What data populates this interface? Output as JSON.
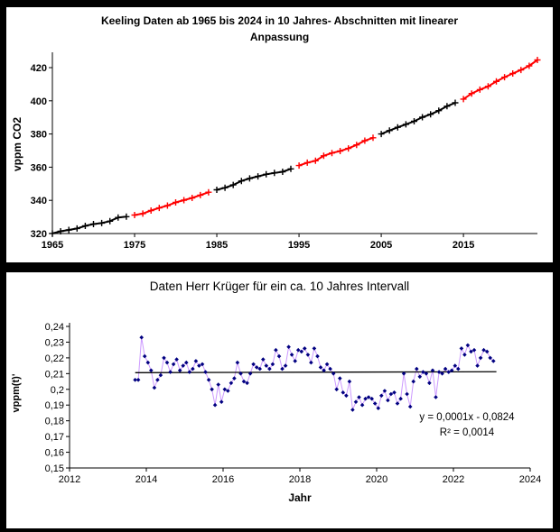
{
  "colors": {
    "frame": "#000000",
    "panel": "#ffffff",
    "axis": "#000000",
    "segment_black": "#000000",
    "segment_red": "#ff0000",
    "kruger_marker_navy": "#000080",
    "kruger_line_lavender": "#cc99ff",
    "trendline_black": "#000000"
  },
  "chart_data": [
    {
      "type": "line",
      "title": "Keeling Daten ab 1965 bis 2024 in 10 Jahres- Abschnitten mit linearer Anpassung",
      "title_lines": [
        "Keeling Daten ab 1965 bis 2024 in 10 Jahres- Abschnitten mit linearer",
        "Anpassung"
      ],
      "xlabel": "",
      "ylabel": "vppm CO2",
      "xlim": [
        1965,
        2024
      ],
      "ylim": [
        320,
        430
      ],
      "xticks": [
        1965,
        1975,
        1985,
        1995,
        2005,
        2015
      ],
      "yticks": [
        320,
        340,
        360,
        380,
        400,
        420
      ],
      "grid": false,
      "legend": "none",
      "marker": "plus",
      "note": "annual mean CO2, 10-year sections alternating black/red with linear fit",
      "segments": [
        {
          "color": "#000000",
          "start_year": 1965,
          "values": [
            320.04,
            321.37,
            322.18,
            323.05,
            324.62,
            325.68,
            326.32,
            327.46,
            329.68,
            330.19
          ]
        },
        {
          "color": "#ff0000",
          "start_year": 1975,
          "values": [
            331.13,
            332.03,
            333.84,
            335.41,
            336.84,
            338.76,
            340.12,
            341.48,
            343.15,
            344.87
          ]
        },
        {
          "color": "#000000",
          "start_year": 1985,
          "values": [
            346.35,
            347.61,
            349.31,
            351.69,
            353.2,
            354.45,
            355.7,
            356.54,
            357.21,
            358.96
          ]
        },
        {
          "color": "#ff0000",
          "start_year": 1995,
          "values": [
            360.97,
            362.74,
            363.88,
            366.84,
            368.54,
            369.71,
            371.32,
            373.45,
            375.98,
            377.7
          ]
        },
        {
          "color": "#000000",
          "start_year": 2005,
          "values": [
            379.98,
            382.09,
            384.02,
            385.83,
            387.64,
            390.1,
            391.85,
            394.06,
            396.74,
            398.81
          ]
        },
        {
          "color": "#ff0000",
          "start_year": 2015,
          "values": [
            401.01,
            404.41,
            406.76,
            408.72,
            411.66,
            414.24,
            416.45,
            418.56,
            421.08,
            424.61
          ]
        }
      ]
    },
    {
      "type": "scatter",
      "title": "Daten Herr Krüger für ein ca. 10 Jahres Intervall",
      "xlabel": "Jahr",
      "ylabel": "vppm(t)'",
      "xlim": [
        2012,
        2024
      ],
      "ylim": [
        0.15,
        0.24
      ],
      "xticks": [
        2012,
        2014,
        2016,
        2018,
        2020,
        2022,
        2024
      ],
      "yticks": [
        0.24,
        0.23,
        0.22,
        0.21,
        0.2,
        0.19,
        0.18,
        0.17,
        0.16,
        0.15
      ],
      "ytick_labels": [
        "0,24",
        "0,23",
        "0,22",
        "0,21",
        "0,2",
        "0,19",
        "0,18",
        "0,17",
        "0,16",
        "0,15"
      ],
      "grid": false,
      "legend": "none",
      "marker": "diamond",
      "marker_color": "#000080",
      "line_color": "#cc99ff",
      "x_start": 2013.7083,
      "x_step": 0.0833333,
      "values": [
        0.206,
        0.206,
        0.233,
        0.221,
        0.217,
        0.212,
        0.201,
        0.206,
        0.209,
        0.22,
        0.217,
        0.211,
        0.216,
        0.219,
        0.212,
        0.215,
        0.217,
        0.211,
        0.213,
        0.218,
        0.215,
        0.216,
        0.211,
        0.206,
        0.2,
        0.19,
        0.203,
        0.192,
        0.2,
        0.199,
        0.204,
        0.207,
        0.217,
        0.21,
        0.205,
        0.204,
        0.21,
        0.216,
        0.214,
        0.213,
        0.219,
        0.215,
        0.213,
        0.216,
        0.225,
        0.221,
        0.213,
        0.215,
        0.227,
        0.222,
        0.218,
        0.225,
        0.224,
        0.226,
        0.222,
        0.217,
        0.226,
        0.221,
        0.214,
        0.212,
        0.216,
        0.213,
        0.21,
        0.2,
        0.207,
        0.198,
        0.196,
        0.205,
        0.187,
        0.192,
        0.195,
        0.19,
        0.194,
        0.195,
        0.194,
        0.191,
        0.188,
        0.196,
        0.199,
        0.193,
        0.197,
        0.198,
        0.191,
        0.194,
        0.21,
        0.197,
        0.189,
        0.205,
        0.213,
        0.208,
        0.211,
        0.21,
        0.204,
        0.212,
        0.195,
        0.211,
        0.21,
        0.213,
        0.211,
        0.212,
        0.215,
        0.213,
        0.226,
        0.222,
        0.228,
        0.224,
        0.225,
        0.215,
        0.22,
        0.225,
        0.224,
        0.22,
        0.218
      ],
      "trendline": {
        "x1": 2013.71,
        "x2": 2023.12,
        "y1": 0.2106,
        "y2": 0.2112,
        "color": "#000000"
      },
      "annotation": {
        "equation": "y = 0,0001x - 0,0824",
        "r_squared": "R² = 0,0014"
      }
    }
  ]
}
